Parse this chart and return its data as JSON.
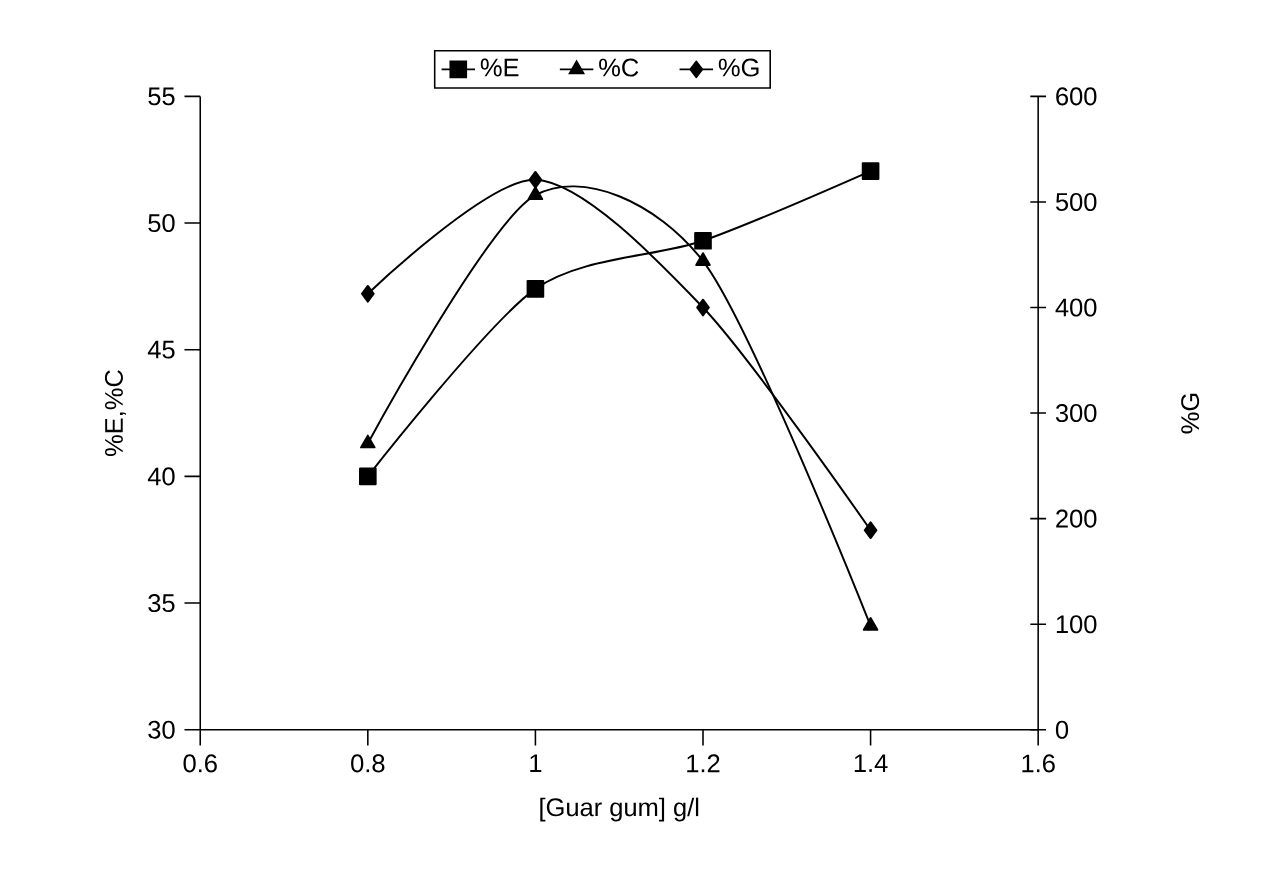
{
  "chart_data": {
    "type": "line",
    "xlabel": "[Guar gum] g/l",
    "ylabel": "%E,%C",
    "y2label": "%G",
    "x": [
      0.8,
      1,
      1.2,
      1.4
    ],
    "series": [
      {
        "name": "%E",
        "color": "#000000",
        "marker": "square",
        "values": [
          40,
          47.4,
          49.3,
          52.05
        ]
      },
      {
        "name": "%C",
        "color": "#000000",
        "marker": "triangle",
        "values": [
          41.3,
          51.1,
          48.5,
          34.1
        ]
      },
      {
        "name": "%G",
        "color": "#000000",
        "marker": "diamond",
        "axis": "y2",
        "values": [
          413,
          521,
          400,
          189
        ]
      }
    ],
    "xlim": [
      0.6,
      1.6
    ],
    "xticks": [
      0.6,
      0.8,
      1,
      1.2,
      1.4,
      1.6
    ],
    "ylim": [
      30,
      55
    ],
    "yticks": [
      30,
      35,
      40,
      45,
      50,
      55
    ],
    "y2lim": [
      0,
      600
    ],
    "y2ticks": [
      0,
      100,
      200,
      300,
      400,
      500,
      600
    ],
    "legend": "top",
    "grid": false,
    "line_style": "solid"
  }
}
